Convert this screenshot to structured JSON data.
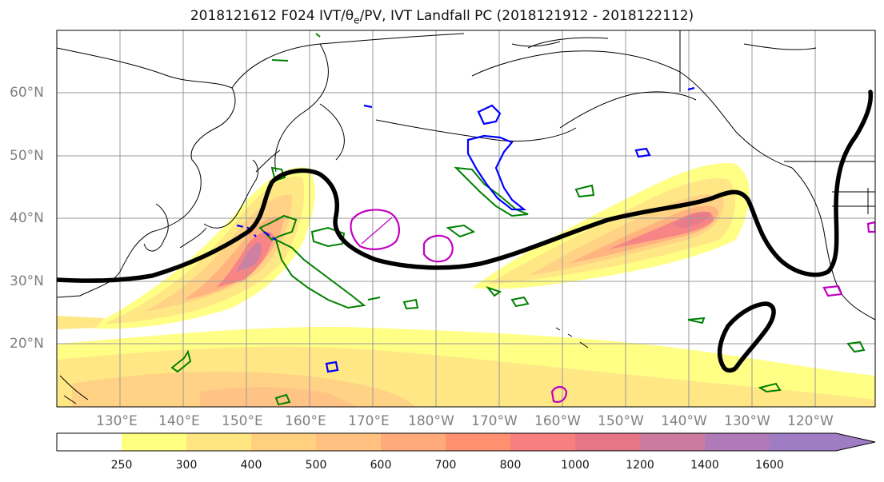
{
  "title": {
    "main": "2018121612 F024 IVT/θ",
    "sub": "e",
    "rest": "/PV, IVT Landfall PC (2018121912 - 2018122112)"
  },
  "lat_labels": [
    "60°N",
    "50°N",
    "40°N",
    "30°N",
    "20°N"
  ],
  "lon_labels": [
    "130°E",
    "140°E",
    "150°E",
    "160°E",
    "170°E",
    "180°W",
    "170°W",
    "160°W",
    "150°W",
    "140°W",
    "130°W",
    "120°W"
  ],
  "colorbar": {
    "ticks": [
      "250",
      "300",
      "400",
      "500",
      "600",
      "700",
      "800",
      "1000",
      "1200",
      "1400",
      "1600"
    ],
    "colors": [
      "#ffffff",
      "#ffff80",
      "#ffe680",
      "#ffd080",
      "#ffc080",
      "#ffaa7a",
      "#ff9070",
      "#f87f7f",
      "#e67585",
      "#cc7aa0",
      "#b07ab8",
      "#a07cc4"
    ]
  },
  "colors": {
    "pc_contour": "#000000",
    "green_contour": "#008000",
    "blue_contour": "#0000ff",
    "magenta_contour": "#c000c0"
  }
}
